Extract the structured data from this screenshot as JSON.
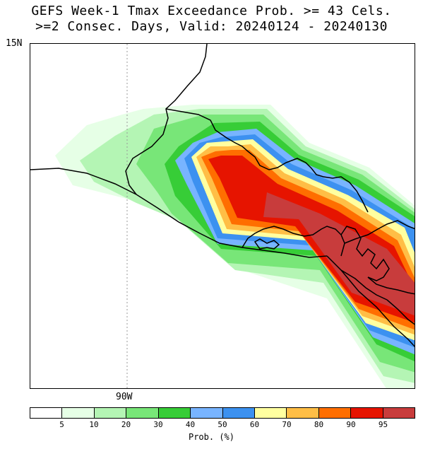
{
  "title_line1": "GEFS Week-1 Tmax Exceedance Prob. >= 43 Cels.",
  "title_line2": ">=2 Consec. Days, Valid: 20240124 - 20240130",
  "lat_label": "15N",
  "lon_label": "90W",
  "colorbar": {
    "label": "Prob. (%)",
    "colors": [
      "#ffffff",
      "#e6ffe6",
      "#b4f5b4",
      "#78e678",
      "#37cd37",
      "#78b4ff",
      "#3c91f0",
      "#ffffa0",
      "#ffbe46",
      "#ff6e00",
      "#e61400",
      "#c83c3c"
    ],
    "ticks": [
      "5",
      "10",
      "20",
      "30",
      "40",
      "50",
      "60",
      "70",
      "80",
      "90",
      "95"
    ]
  },
  "map": {
    "region": "Central America Pacific coast",
    "dashed_meridian": "90W"
  }
}
